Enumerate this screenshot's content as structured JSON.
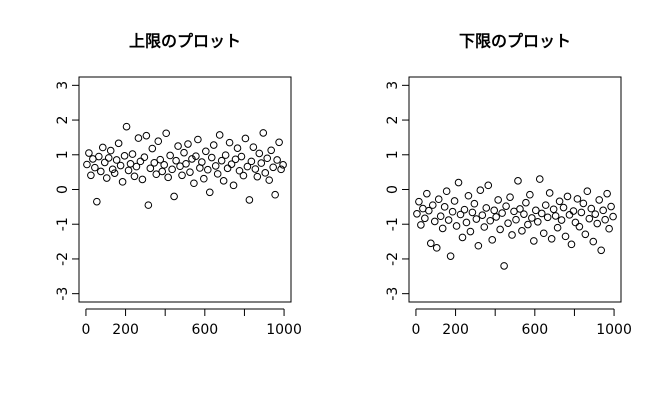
{
  "chart_data": [
    {
      "type": "scatter",
      "title": "上限のプロット",
      "color": "#000000",
      "xlim": [
        -35,
        1035
      ],
      "ylim": [
        -3.24,
        3.24
      ],
      "xticks": [
        0,
        200,
        600,
        1000
      ],
      "xminor_ticks": [
        400,
        800
      ],
      "yticks": [
        -3,
        -2,
        -1,
        0,
        1,
        2,
        3
      ],
      "x": [
        5,
        15,
        25,
        35,
        45,
        55,
        65,
        75,
        85,
        95,
        105,
        115,
        125,
        135,
        145,
        155,
        165,
        175,
        185,
        195,
        205,
        215,
        225,
        235,
        245,
        255,
        265,
        275,
        285,
        295,
        305,
        315,
        325,
        335,
        345,
        355,
        365,
        375,
        385,
        395,
        405,
        415,
        425,
        435,
        445,
        455,
        465,
        475,
        485,
        495,
        505,
        515,
        525,
        535,
        545,
        555,
        565,
        575,
        585,
        595,
        605,
        615,
        625,
        635,
        645,
        655,
        665,
        675,
        685,
        695,
        705,
        715,
        725,
        735,
        745,
        755,
        765,
        775,
        785,
        795,
        805,
        815,
        825,
        835,
        845,
        855,
        865,
        875,
        885,
        895,
        905,
        915,
        925,
        935,
        945,
        955,
        965,
        975,
        985,
        995
      ],
      "values": [
        0.72,
        1.05,
        0.41,
        0.88,
        0.63,
        -0.35,
        0.95,
        0.52,
        1.21,
        0.78,
        0.33,
        0.91,
        1.12,
        0.58,
        0.47,
        0.85,
        1.33,
        0.69,
        0.22,
        0.97,
        1.81,
        0.55,
        0.74,
        1.02,
        0.38,
        0.66,
        1.48,
        0.81,
        0.29,
        0.93,
        1.55,
        -0.45,
        0.61,
        1.18,
        0.77,
        0.44,
        1.39,
        0.86,
        0.52,
        0.71,
        1.62,
        0.35,
        0.98,
        0.58,
        -0.2,
        0.83,
        1.25,
        0.67,
        0.41,
        1.06,
        0.74,
        1.31,
        0.5,
        0.88,
        0.18,
        0.96,
        1.44,
        0.62,
        0.79,
        0.31,
        1.1,
        0.57,
        -0.08,
        0.92,
        1.28,
        0.68,
        0.45,
        1.57,
        0.83,
        0.25,
        0.99,
        0.61,
        1.35,
        0.73,
        0.12,
        0.87,
        1.19,
        0.54,
        0.95,
        0.4,
        1.47,
        0.66,
        -0.3,
        0.81,
        1.22,
        0.59,
        0.37,
        1.04,
        0.76,
        1.63,
        0.48,
        0.9,
        0.27,
        1.13,
        0.64,
        -0.15,
        0.85,
        1.36,
        0.58,
        0.71
      ]
    },
    {
      "type": "scatter",
      "title": "下限のプロット",
      "color": "#000000",
      "xlim": [
        -35,
        1035
      ],
      "ylim": [
        -3.24,
        3.24
      ],
      "xticks": [
        0,
        200,
        600,
        1000
      ],
      "xminor_ticks": [
        400,
        800
      ],
      "yticks": [
        -3,
        -2,
        -1,
        0,
        1,
        2,
        3
      ],
      "x": [
        5,
        15,
        25,
        35,
        45,
        55,
        65,
        75,
        85,
        95,
        105,
        115,
        125,
        135,
        145,
        155,
        165,
        175,
        185,
        195,
        205,
        215,
        225,
        235,
        245,
        255,
        265,
        275,
        285,
        295,
        305,
        315,
        325,
        335,
        345,
        355,
        365,
        375,
        385,
        395,
        405,
        415,
        425,
        435,
        445,
        455,
        465,
        475,
        485,
        495,
        505,
        515,
        525,
        535,
        545,
        555,
        565,
        575,
        585,
        595,
        605,
        615,
        625,
        635,
        645,
        655,
        665,
        675,
        685,
        695,
        705,
        715,
        725,
        735,
        745,
        755,
        765,
        775,
        785,
        795,
        805,
        815,
        825,
        835,
        845,
        855,
        865,
        875,
        885,
        895,
        905,
        915,
        925,
        935,
        945,
        955,
        965,
        975,
        985,
        995
      ],
      "values": [
        -0.7,
        -0.35,
        -1.02,
        -0.55,
        -0.83,
        -0.12,
        -0.61,
        -1.55,
        -0.45,
        -0.92,
        -1.68,
        -0.28,
        -0.77,
        -1.12,
        -0.5,
        -0.05,
        -0.88,
        -1.92,
        -0.64,
        -0.33,
        -1.05,
        0.2,
        -0.72,
        -1.38,
        -0.58,
        -0.95,
        -0.18,
        -1.21,
        -0.66,
        -0.41,
        -0.85,
        -1.62,
        -0.02,
        -0.74,
        -1.08,
        -0.53,
        0.12,
        -0.9,
        -1.45,
        -0.6,
        -0.79,
        -0.3,
        -1.15,
        -0.68,
        -2.2,
        -0.48,
        -0.97,
        -0.22,
        -1.31,
        -0.63,
        -0.87,
        0.25,
        -0.56,
        -1.19,
        -0.71,
        -0.38,
        -1.01,
        -0.15,
        -0.82,
        -1.48,
        -0.6,
        -0.93,
        0.3,
        -0.69,
        -1.26,
        -0.45,
        -0.8,
        -0.1,
        -1.42,
        -0.57,
        -0.76,
        -1.1,
        -0.34,
        -0.88,
        -0.52,
        -1.35,
        -0.2,
        -0.73,
        -1.58,
        -0.62,
        -0.95,
        -0.27,
        -1.07,
        -0.66,
        -0.4,
        -1.29,
        -0.05,
        -0.84,
        -0.55,
        -1.5,
        -0.71,
        -0.98,
        -0.3,
        -1.75,
        -0.6,
        -0.87,
        -0.12,
        -1.13,
        -0.49,
        -0.78
      ]
    }
  ]
}
